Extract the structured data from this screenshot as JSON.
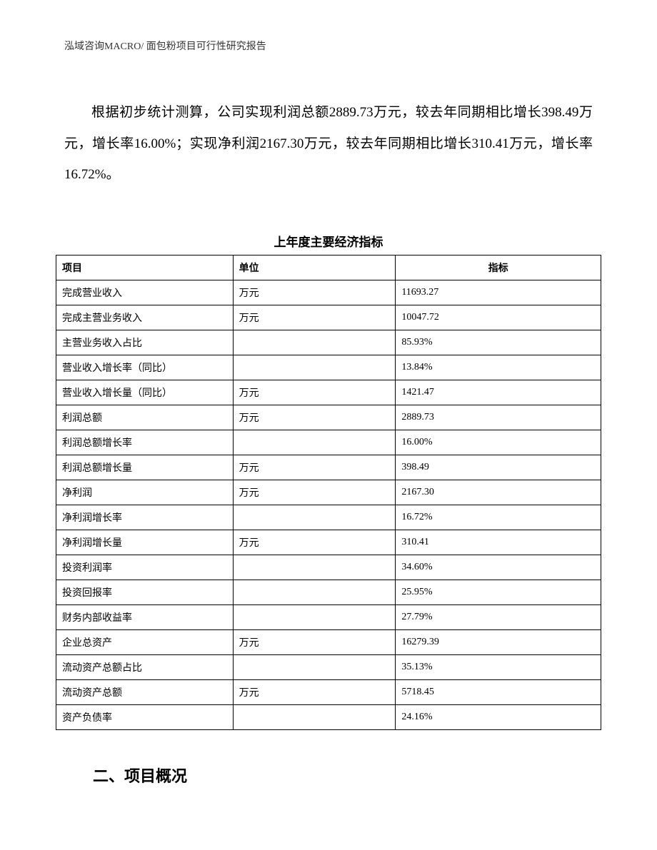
{
  "header": {
    "company": "泓域咨询MACRO/",
    "doc_title": "面包粉项目可行性研究报告"
  },
  "paragraph": {
    "text": "根据初步统计测算，公司实现利润总额2889.73万元，较去年同期相比增长398.49万元，增长率16.00%；实现净利润2167.30万元，较去年同期相比增长310.41万元，增长率16.72%。"
  },
  "table": {
    "title": "上年度主要经济指标",
    "columns": {
      "item": "项目",
      "unit": "单位",
      "value": "指标"
    },
    "rows": [
      {
        "item": "完成营业收入",
        "unit": "万元",
        "value": "11693.27"
      },
      {
        "item": "完成主营业务收入",
        "unit": "万元",
        "value": "10047.72"
      },
      {
        "item": "主营业务收入占比",
        "unit": "",
        "value": "85.93%"
      },
      {
        "item": "营业收入增长率（同比）",
        "unit": "",
        "value": "13.84%"
      },
      {
        "item": "营业收入增长量（同比）",
        "unit": "万元",
        "value": "1421.47"
      },
      {
        "item": "利润总额",
        "unit": "万元",
        "value": "2889.73"
      },
      {
        "item": "利润总额增长率",
        "unit": "",
        "value": "16.00%"
      },
      {
        "item": "利润总额增长量",
        "unit": "万元",
        "value": "398.49"
      },
      {
        "item": "净利润",
        "unit": "万元",
        "value": "2167.30"
      },
      {
        "item": "净利润增长率",
        "unit": "",
        "value": "16.72%"
      },
      {
        "item": "净利润增长量",
        "unit": "万元",
        "value": "310.41"
      },
      {
        "item": "投资利润率",
        "unit": "",
        "value": "34.60%"
      },
      {
        "item": "投资回报率",
        "unit": "",
        "value": "25.95%"
      },
      {
        "item": "财务内部收益率",
        "unit": "",
        "value": "27.79%"
      },
      {
        "item": "企业总资产",
        "unit": "万元",
        "value": "16279.39"
      },
      {
        "item": "流动资产总额占比",
        "unit": "",
        "value": "35.13%"
      },
      {
        "item": "流动资产总额",
        "unit": "万元",
        "value": "5718.45"
      },
      {
        "item": "资产负债率",
        "unit": "",
        "value": "24.16%"
      }
    ]
  },
  "section_heading": "二、项目概况"
}
